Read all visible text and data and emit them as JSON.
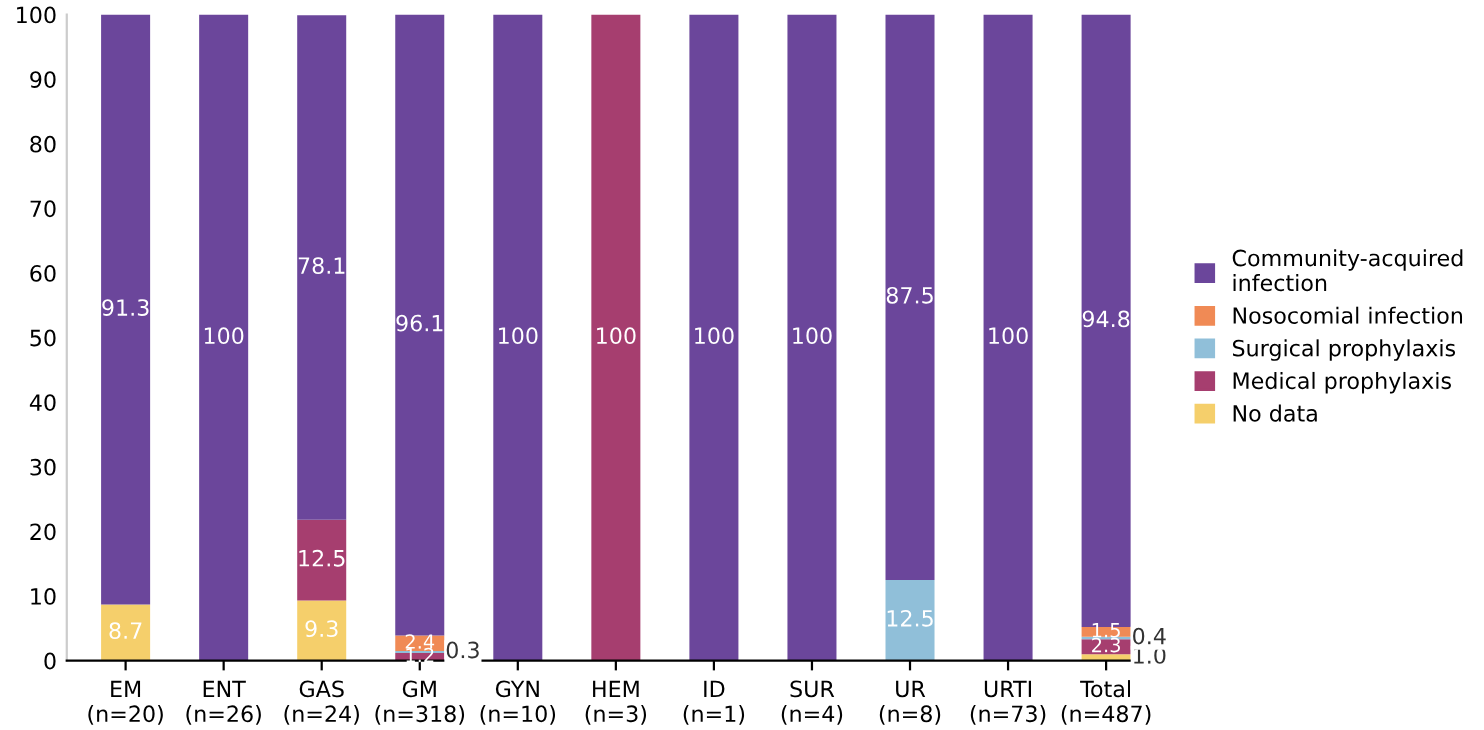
{
  "chart_data": {
    "type": "bar",
    "stacked": true,
    "categories": [
      "EM\n(n=20)",
      "ENT\n(n=26)",
      "GAS\n(n=24)",
      "GM\n(n=318)",
      "GYN\n(n=10)",
      "HEM\n(n=3)",
      "ID\n(n=1)",
      "SUR\n(n=4)",
      "UR\n(n=8)",
      "URTI\n(n=73)",
      "Total\n(n=487)"
    ],
    "series": [
      {
        "name": "No data",
        "color": "#f5cf6b",
        "values": [
          8.7,
          0,
          9.3,
          0,
          0,
          0,
          0,
          0,
          0,
          0,
          1.0
        ],
        "value_labels": [
          "8.7",
          null,
          "9.3",
          null,
          null,
          null,
          null,
          null,
          null,
          null,
          "1.0"
        ]
      },
      {
        "name": "Medical prophylaxis",
        "color": "#a63e6f",
        "values": [
          0,
          0,
          12.5,
          1.2,
          0,
          100,
          0,
          0,
          0,
          0,
          2.3
        ],
        "value_labels": [
          null,
          null,
          "12.5",
          "1.2",
          null,
          "100",
          null,
          null,
          null,
          null,
          "2.3"
        ]
      },
      {
        "name": "Surgical prophylaxis",
        "color": "#90bfd9",
        "values": [
          0,
          0,
          0,
          0.3,
          0,
          0,
          0,
          0,
          12.5,
          0,
          0.4
        ],
        "value_labels": [
          null,
          null,
          null,
          "0.3",
          null,
          null,
          null,
          null,
          "12.5",
          null,
          "0.4"
        ]
      },
      {
        "name": "Nosocomial infection",
        "color": "#f08a55",
        "values": [
          0,
          0,
          0,
          2.4,
          0,
          0,
          0,
          0,
          0,
          0,
          1.5
        ],
        "value_labels": [
          null,
          null,
          null,
          "2.4",
          null,
          null,
          null,
          null,
          null,
          null,
          "1.5"
        ]
      },
      {
        "name": "Community-acquired\ninfection",
        "color": "#6b469b",
        "values": [
          91.3,
          100,
          78.1,
          96.1,
          100,
          0,
          100,
          100,
          87.5,
          100,
          94.8
        ],
        "value_labels": [
          "91.3",
          "100",
          "78.1",
          "96.1",
          "100",
          null,
          "100",
          "100",
          "87.5",
          "100",
          "94.8"
        ]
      }
    ],
    "ylim": [
      0,
      100
    ],
    "yticks": [
      0,
      10,
      20,
      30,
      40,
      50,
      60,
      70,
      80,
      90,
      100
    ],
    "legend": "right",
    "grid": false
  }
}
